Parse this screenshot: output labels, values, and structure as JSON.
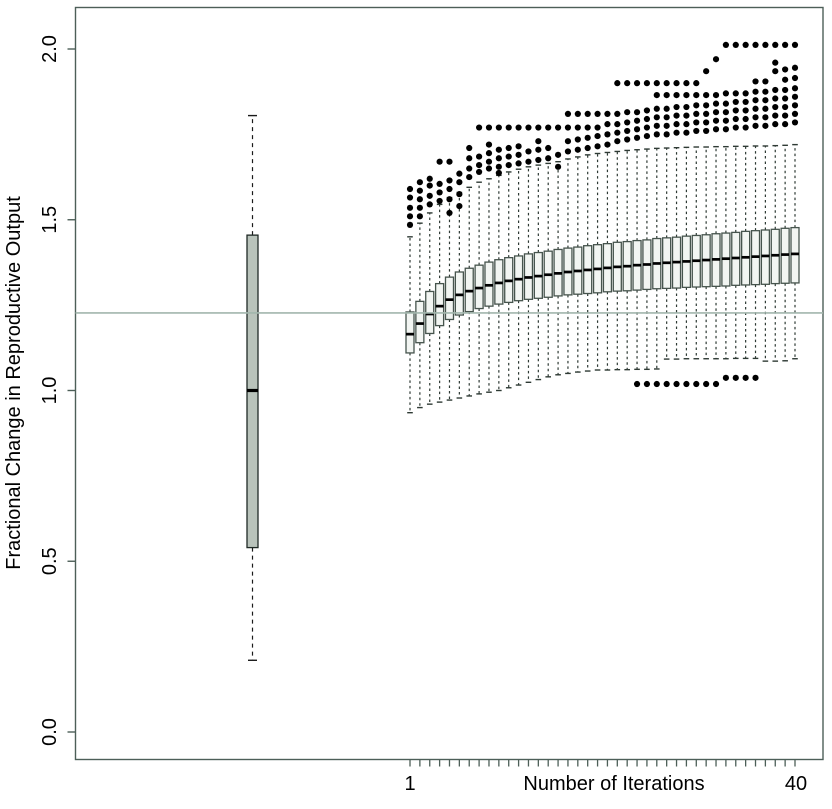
{
  "figure": {
    "background": "#ffffff",
    "title": ""
  },
  "colors": {
    "frame": "#4d5f58",
    "reference_line": "#a2b6ad",
    "left_box_fill": "#b9c3bb",
    "left_box_stroke": "#1f2925",
    "right_box_fill": "#f2f5f2",
    "right_box_stroke": "#46544d",
    "whisker": "#2e3a34",
    "median": "#000000",
    "outlier": "#000000",
    "text": "#000000"
  },
  "chart_data": {
    "type": "boxplot",
    "title": "",
    "xlabel": "Number of Iterations",
    "ylabel": "Fractional Change in Reproductive Output",
    "x_first_label": "1",
    "x_last_label": "40",
    "n_iterations": 40,
    "ylim": [
      -0.08,
      2.12
    ],
    "y_ticks": [
      0.0,
      0.5,
      1.0,
      1.5,
      2.0
    ],
    "y_tick_labels": [
      "0.0",
      "0.5",
      "1.0",
      "1.5",
      "2.0"
    ],
    "grid": false,
    "legend": "none",
    "reference_line_y": 1.227,
    "single_box": {
      "whisker_low": 0.21,
      "q1": 0.54,
      "median": 1.0,
      "q3": 1.455,
      "whisker_high": 1.805,
      "outliers": []
    },
    "iteration_boxes": {
      "iterations": [
        1,
        2,
        3,
        4,
        5,
        6,
        7,
        8,
        9,
        10,
        11,
        12,
        13,
        14,
        15,
        16,
        17,
        18,
        19,
        20,
        21,
        22,
        23,
        24,
        25,
        26,
        27,
        28,
        29,
        30,
        31,
        32,
        33,
        34,
        35,
        36,
        37,
        38,
        39,
        40
      ],
      "median": [
        1.165,
        1.196,
        1.224,
        1.247,
        1.266,
        1.28,
        1.291,
        1.3,
        1.308,
        1.315,
        1.321,
        1.326,
        1.331,
        1.335,
        1.339,
        1.343,
        1.347,
        1.35,
        1.353,
        1.356,
        1.359,
        1.362,
        1.364,
        1.367,
        1.369,
        1.372,
        1.374,
        1.376,
        1.378,
        1.38,
        1.382,
        1.384,
        1.386,
        1.388,
        1.39,
        1.392,
        1.394,
        1.396,
        1.398,
        1.4
      ],
      "q1": [
        1.11,
        1.14,
        1.167,
        1.19,
        1.208,
        1.221,
        1.231,
        1.24,
        1.247,
        1.253,
        1.258,
        1.263,
        1.267,
        1.27,
        1.273,
        1.277,
        1.28,
        1.282,
        1.284,
        1.286,
        1.289,
        1.291,
        1.292,
        1.294,
        1.296,
        1.298,
        1.299,
        1.3,
        1.302,
        1.303,
        1.304,
        1.305,
        1.306,
        1.308,
        1.309,
        1.31,
        1.311,
        1.313,
        1.314,
        1.315
      ],
      "q3": [
        1.23,
        1.261,
        1.29,
        1.313,
        1.332,
        1.347,
        1.358,
        1.367,
        1.376,
        1.383,
        1.389,
        1.394,
        1.4,
        1.404,
        1.408,
        1.413,
        1.417,
        1.42,
        1.424,
        1.427,
        1.43,
        1.434,
        1.436,
        1.439,
        1.441,
        1.445,
        1.447,
        1.449,
        1.452,
        1.454,
        1.456,
        1.459,
        1.461,
        1.463,
        1.466,
        1.468,
        1.47,
        1.472,
        1.475,
        1.477
      ],
      "whisker_low": [
        0.935,
        0.95,
        0.96,
        0.966,
        0.972,
        0.978,
        0.984,
        0.99,
        0.995,
        1.0,
        1.008,
        1.016,
        1.024,
        1.032,
        1.04,
        1.046,
        1.05,
        1.054,
        1.057,
        1.06,
        1.06,
        1.061,
        1.061,
        1.062,
        1.062,
        1.063,
        1.092,
        1.092,
        1.093,
        1.093,
        1.093,
        1.093,
        1.093,
        1.094,
        1.094,
        1.094,
        1.086,
        1.086,
        1.087,
        1.093
      ],
      "whisker_high": [
        1.45,
        1.49,
        1.52,
        1.545,
        1.565,
        1.58,
        1.595,
        1.61,
        1.62,
        1.63,
        1.64,
        1.648,
        1.655,
        1.66,
        1.665,
        1.67,
        1.678,
        1.684,
        1.69,
        1.694,
        1.697,
        1.7,
        1.703,
        1.705,
        1.707,
        1.709,
        1.71,
        1.711,
        1.712,
        1.713,
        1.713,
        1.714,
        1.714,
        1.715,
        1.715,
        1.716,
        1.716,
        1.717,
        1.718,
        1.72
      ],
      "outliers_high": [
        [
          1.485,
          1.51,
          1.535,
          1.565,
          1.59
        ],
        [
          1.51,
          1.535,
          1.56,
          1.585,
          1.61
        ],
        [
          1.545,
          1.57,
          1.6,
          1.62
        ],
        [
          1.555,
          1.58,
          1.605,
          1.67
        ],
        [
          1.52,
          1.56,
          1.59,
          1.615,
          1.67
        ],
        [
          1.54,
          1.575,
          1.61,
          1.635
        ],
        [
          1.625,
          1.65,
          1.68,
          1.71
        ],
        [
          1.64,
          1.66,
          1.685,
          1.77
        ],
        [
          1.65,
          1.67,
          1.695,
          1.72,
          1.77
        ],
        [
          1.637,
          1.655,
          1.68,
          1.705,
          1.77
        ],
        [
          1.66,
          1.685,
          1.71,
          1.77
        ],
        [
          1.665,
          1.69,
          1.715,
          1.77
        ],
        [
          1.67,
          1.7,
          1.77
        ],
        [
          1.675,
          1.705,
          1.73,
          1.77
        ],
        [
          1.68,
          1.71,
          1.77
        ],
        [
          1.655,
          1.69,
          1.77
        ],
        [
          1.7,
          1.73,
          1.77,
          1.81
        ],
        [
          1.705,
          1.735,
          1.77,
          1.81
        ],
        [
          1.71,
          1.74,
          1.77,
          1.81
        ],
        [
          1.715,
          1.745,
          1.77,
          1.81
        ],
        [
          1.72,
          1.75,
          1.78,
          1.81
        ],
        [
          1.73,
          1.755,
          1.78,
          1.81,
          1.9
        ],
        [
          1.735,
          1.76,
          1.785,
          1.815,
          1.9
        ],
        [
          1.74,
          1.765,
          1.79,
          1.815,
          1.9
        ],
        [
          1.745,
          1.77,
          1.795,
          1.82,
          1.9
        ],
        [
          1.75,
          1.775,
          1.8,
          1.825,
          1.865,
          1.9
        ],
        [
          1.75,
          1.775,
          1.8,
          1.825,
          1.865,
          1.9
        ],
        [
          1.755,
          1.78,
          1.805,
          1.83,
          1.865,
          1.9
        ],
        [
          1.755,
          1.78,
          1.805,
          1.83,
          1.865,
          1.9
        ],
        [
          1.76,
          1.785,
          1.81,
          1.835,
          1.865,
          1.9
        ],
        [
          1.76,
          1.785,
          1.81,
          1.835,
          1.865,
          1.935
        ],
        [
          1.765,
          1.79,
          1.815,
          1.84,
          1.865,
          1.97
        ],
        [
          1.765,
          1.79,
          1.815,
          1.84,
          1.87,
          2.012
        ],
        [
          1.77,
          1.795,
          1.82,
          1.845,
          1.87,
          2.012
        ],
        [
          1.77,
          1.795,
          1.82,
          1.845,
          1.87,
          2.012
        ],
        [
          1.775,
          1.8,
          1.825,
          1.85,
          1.875,
          1.905,
          2.012
        ],
        [
          1.775,
          1.8,
          1.825,
          1.85,
          1.875,
          1.905,
          2.012
        ],
        [
          1.78,
          1.805,
          1.83,
          1.855,
          1.88,
          1.935,
          1.96,
          2.012
        ],
        [
          1.78,
          1.805,
          1.83,
          1.855,
          1.88,
          1.91,
          1.94,
          2.012
        ],
        [
          1.785,
          1.81,
          1.835,
          1.86,
          1.885,
          1.915,
          1.945,
          2.012
        ]
      ],
      "outliers_low": [
        [],
        [],
        [],
        [],
        [],
        [],
        [],
        [],
        [],
        [],
        [],
        [],
        [],
        [],
        [],
        [],
        [],
        [],
        [],
        [],
        [],
        [],
        [],
        [
          1.019
        ],
        [
          1.019
        ],
        [
          1.019
        ],
        [
          1.019
        ],
        [
          1.019
        ],
        [
          1.019
        ],
        [
          1.019
        ],
        [
          1.019
        ],
        [
          1.019
        ],
        [
          1.037
        ],
        [
          1.037
        ],
        [
          1.037
        ],
        [
          1.037
        ],
        [],
        [],
        [],
        []
      ]
    }
  }
}
